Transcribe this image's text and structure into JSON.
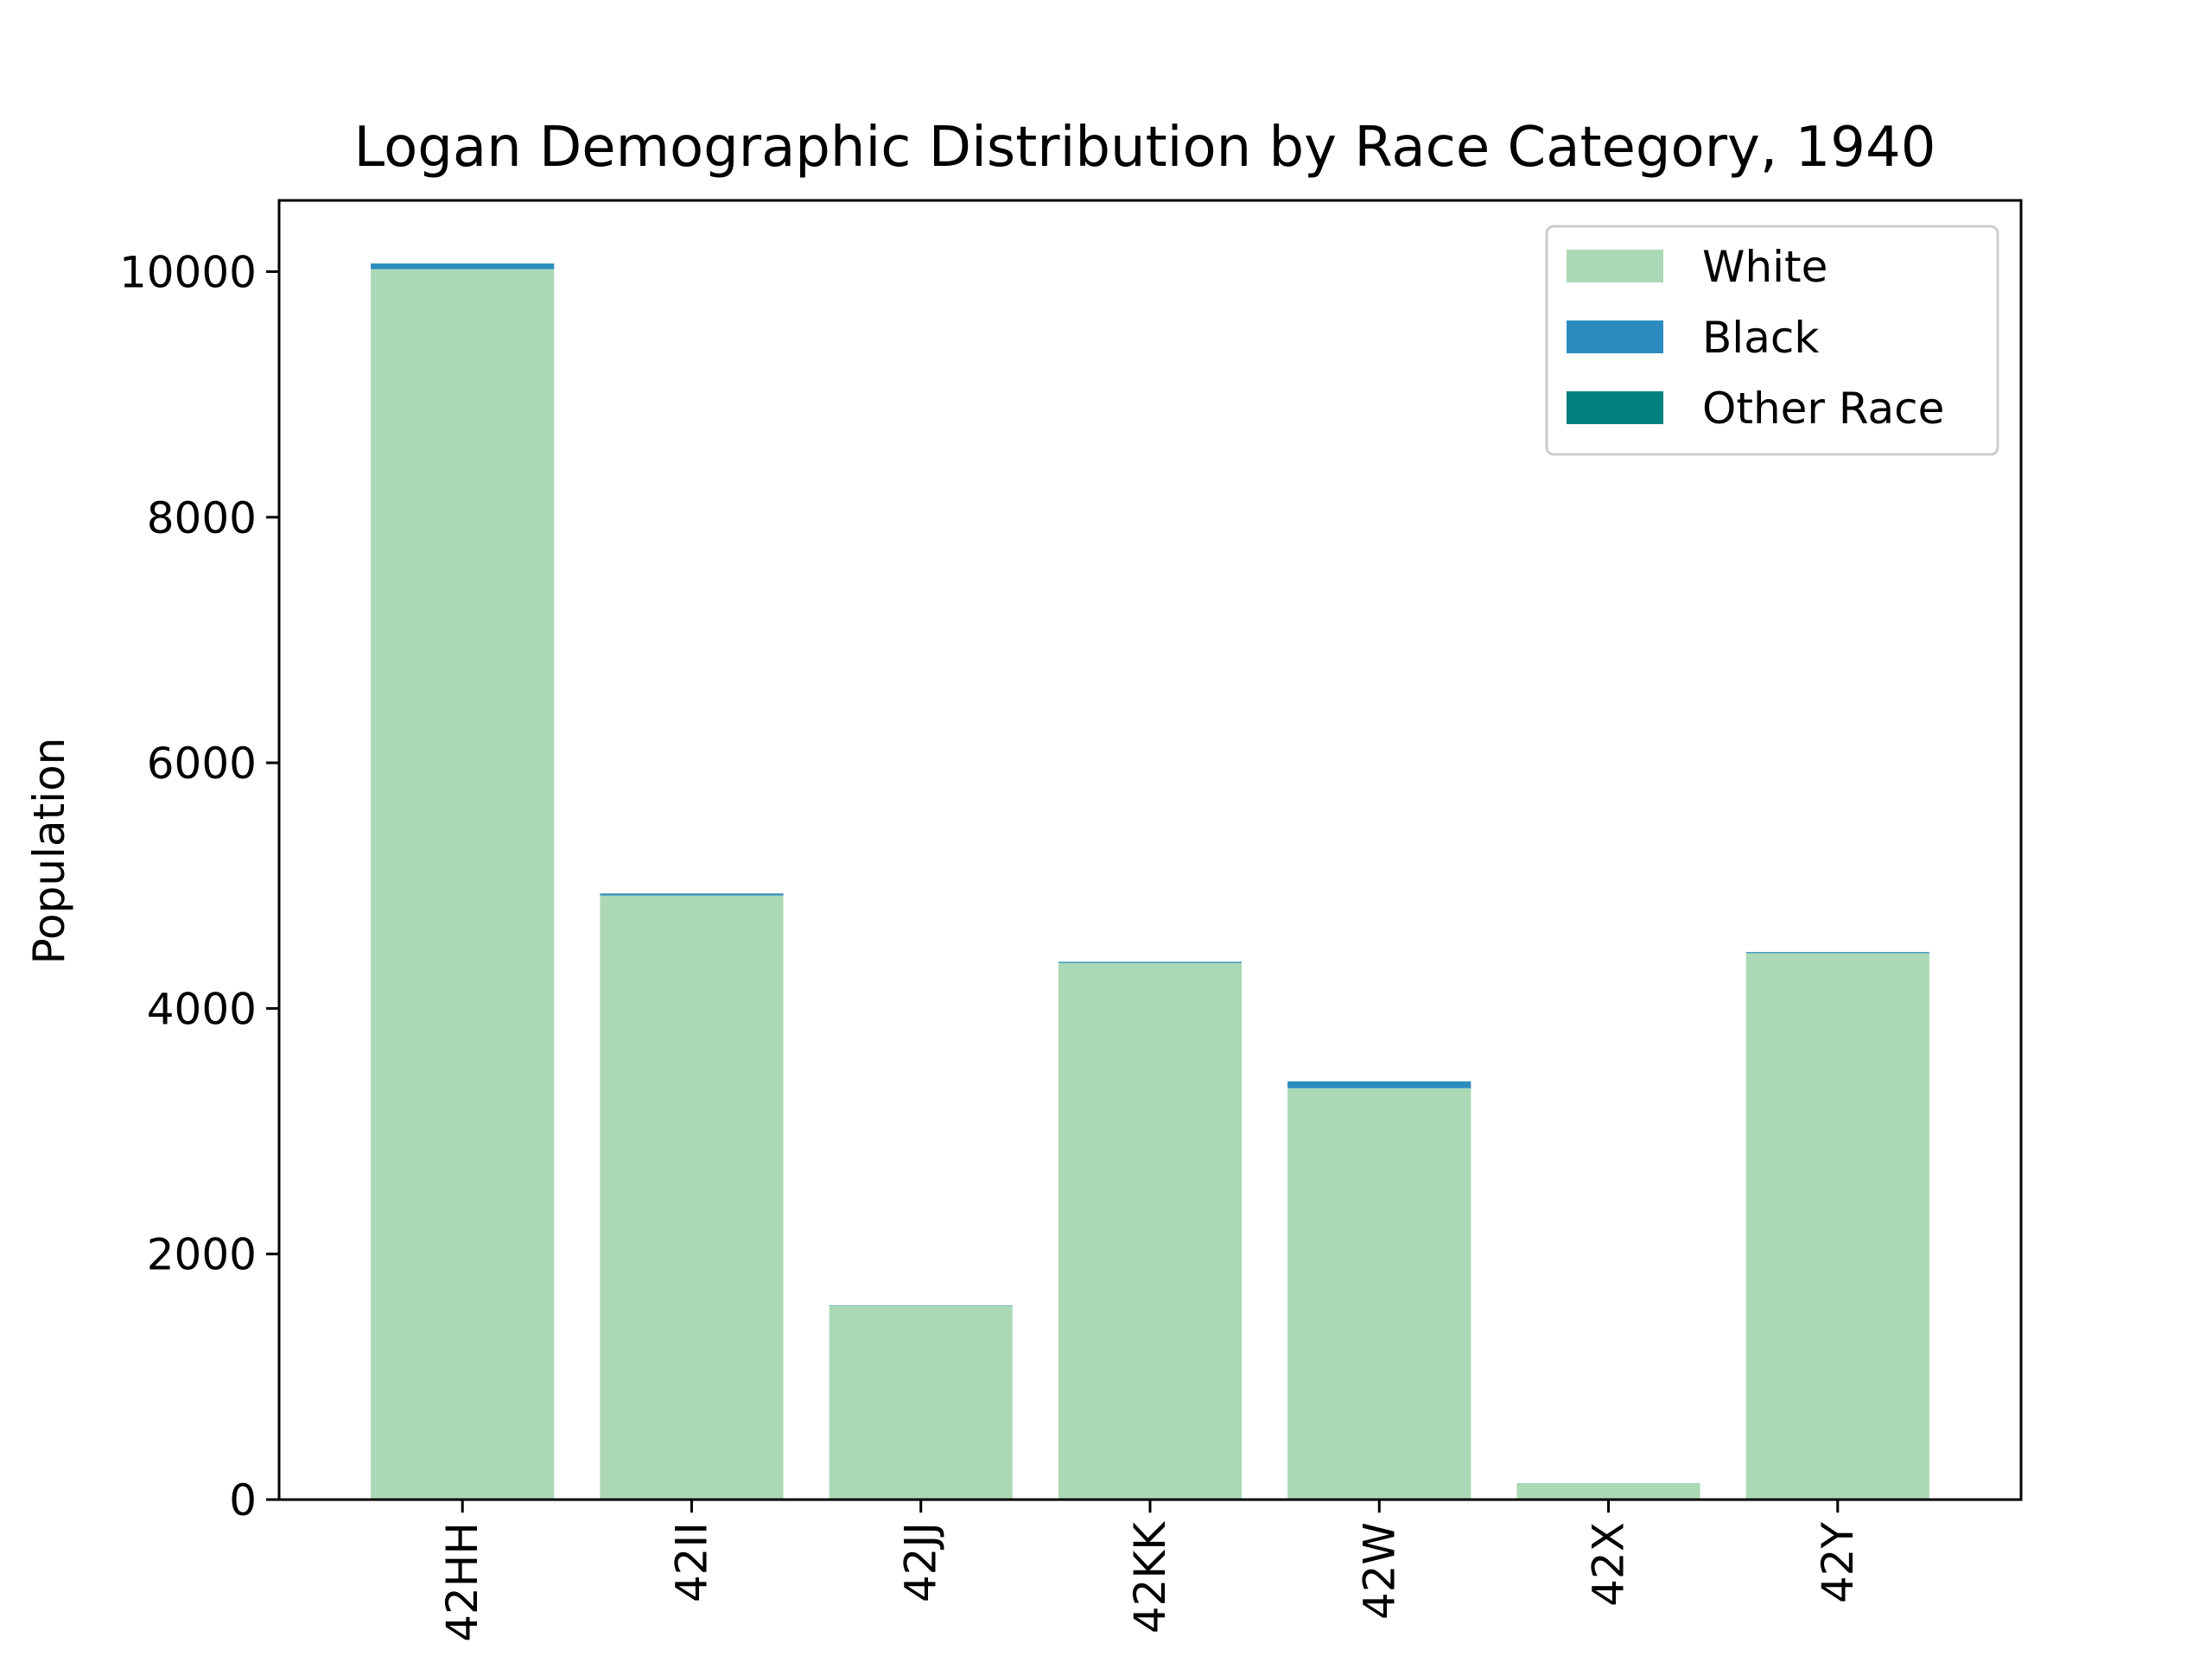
{
  "chart_data": {
    "type": "bar",
    "stacked": true,
    "title": "Logan Demographic Distribution by Race Category, 1940",
    "xlabel": "",
    "ylabel": "Population",
    "categories": [
      "42HH",
      "42II",
      "42JJ",
      "42KK",
      "42W",
      "42X",
      "42Y"
    ],
    "series": [
      {
        "name": "White",
        "color": "#abd9b5",
        "values": [
          10020,
          4920,
          1580,
          4370,
          3350,
          130,
          4450
        ]
      },
      {
        "name": "Black",
        "color": "#2c8cbf",
        "values": [
          45,
          15,
          3,
          8,
          55,
          2,
          8
        ]
      },
      {
        "name": "Other Race",
        "color": "#008080",
        "values": [
          2,
          1,
          0,
          2,
          1,
          0,
          1
        ]
      }
    ],
    "ylim": [
      0,
      10580
    ],
    "yticks": [
      0,
      2000,
      4000,
      6000,
      8000,
      10000
    ],
    "grid": false,
    "legend_position": "top-right"
  }
}
